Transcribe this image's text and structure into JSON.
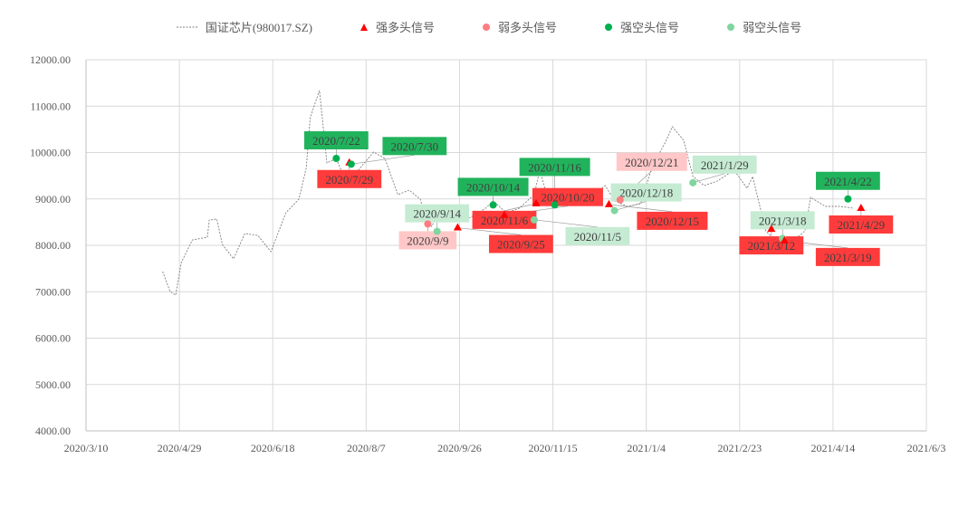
{
  "chart_data": {
    "type": "line",
    "title": "",
    "legend_position": "top",
    "legend": [
      {
        "name": "国证芯片(980017.SZ)",
        "color": "#7f7f7f",
        "style": "dashed-line"
      },
      {
        "name": "强多头信号",
        "color": "#ff0000",
        "style": "triangle"
      },
      {
        "name": "弱多头信号",
        "color": "#ff7c80",
        "style": "circle"
      },
      {
        "name": "强空头信号",
        "color": "#00b050",
        "style": "circle"
      },
      {
        "name": "弱空头信号",
        "color": "#7fd69e",
        "style": "circle"
      }
    ],
    "x_start": "2020/3/10",
    "x_ticks": [
      "2020/3/10",
      "2020/4/29",
      "2020/6/18",
      "2020/8/7",
      "2020/9/26",
      "2020/11/15",
      "2021/1/4",
      "2021/2/23",
      "2021/4/14",
      "2021/6/3"
    ],
    "x_tick_step_days": 50,
    "ylim": [
      4000,
      12000
    ],
    "y_ticks": [
      "4000.00",
      "5000.00",
      "6000.00",
      "7000.00",
      "8000.00",
      "9000.00",
      "10000.00",
      "11000.00",
      "12000.00"
    ],
    "grid": true,
    "series_days": [
      41,
      45,
      48,
      51,
      57,
      65,
      66,
      70,
      73,
      79,
      85,
      92,
      99,
      107,
      114,
      118,
      120,
      125,
      129,
      134,
      138,
      145,
      154,
      160,
      167,
      173,
      179,
      182,
      185,
      192,
      199,
      206,
      214,
      218,
      225,
      232,
      240,
      243,
      246,
      258,
      274,
      278,
      283,
      290,
      297,
      303,
      310,
      314,
      320,
      325,
      331,
      338,
      347,
      354,
      357,
      364,
      371,
      381,
      385,
      388,
      396,
      404,
      411
    ],
    "series_values": [
      7434,
      7005,
      6927,
      7630,
      8117,
      8176,
      8547,
      8566,
      8020,
      7708,
      8254,
      8215,
      7864,
      8703,
      8995,
      9678,
      10751,
      11337,
      9776,
      9873,
      9483,
      9581,
      10010,
      9873,
      9093,
      9190,
      8995,
      8605,
      8410,
      8839,
      8508,
      8605,
      8800,
      8956,
      8703,
      8800,
      9093,
      9620,
      9190,
      9034,
      9151,
      9288,
      8956,
      8839,
      8898,
      9678,
      10205,
      10556,
      10264,
      9483,
      9288,
      9386,
      9620,
      9229,
      9483,
      8313,
      8020,
      8176,
      8313,
      9034,
      8839,
      8839,
      8800
    ],
    "signals": [
      {
        "date": "2020/7/22",
        "type": "strong_bear",
        "value": 9873
      },
      {
        "date": "2020/7/29",
        "type": "strong_bull",
        "value": 9780
      },
      {
        "date": "2020/7/30",
        "type": "strong_bear",
        "value": 9750
      },
      {
        "date": "2020/9/9",
        "type": "weak_bull",
        "value": 8460
      },
      {
        "date": "2020/9/14",
        "type": "weak_bear",
        "value": 8300
      },
      {
        "date": "2020/9/25",
        "type": "strong_bull",
        "value": 8380
      },
      {
        "date": "2020/10/14",
        "type": "strong_bear",
        "value": 8870
      },
      {
        "date": "2020/10/20",
        "type": "strong_bull",
        "value": 8650
      },
      {
        "date": "2020/11/5",
        "type": "weak_bear",
        "value": 8550
      },
      {
        "date": "2020/11/6",
        "type": "strong_bull",
        "value": 8900
      },
      {
        "date": "2020/11/16",
        "type": "strong_bear",
        "value": 8870
      },
      {
        "date": "2020/12/15",
        "type": "strong_bull",
        "value": 8880
      },
      {
        "date": "2020/12/18",
        "type": "weak_bear",
        "value": 8750
      },
      {
        "date": "2020/12/21",
        "type": "weak_bull",
        "value": 8980
      },
      {
        "date": "2021/1/29",
        "type": "weak_bear",
        "value": 9350
      },
      {
        "date": "2021/3/12",
        "type": "strong_bull",
        "value": 8350
      },
      {
        "date": "2021/3/18",
        "type": "weak_bear",
        "value": 8150
      },
      {
        "date": "2021/3/19",
        "type": "strong_bull",
        "value": 8100
      },
      {
        "date": "2021/4/22",
        "type": "strong_bear",
        "value": 9000
      },
      {
        "date": "2021/4/29",
        "type": "strong_bull",
        "value": 8800
      }
    ],
    "colors": {
      "strong_bull": "#ff0000",
      "weak_bull": "#ff7c80",
      "strong_bear": "#00b050",
      "weak_bear": "#7fd69e",
      "label_strong_bull": "#ff3b3b",
      "label_weak_bull": "#ffc7c7",
      "label_strong_bear": "#21b35c",
      "label_weak_bear": "#c6ebd3"
    }
  }
}
